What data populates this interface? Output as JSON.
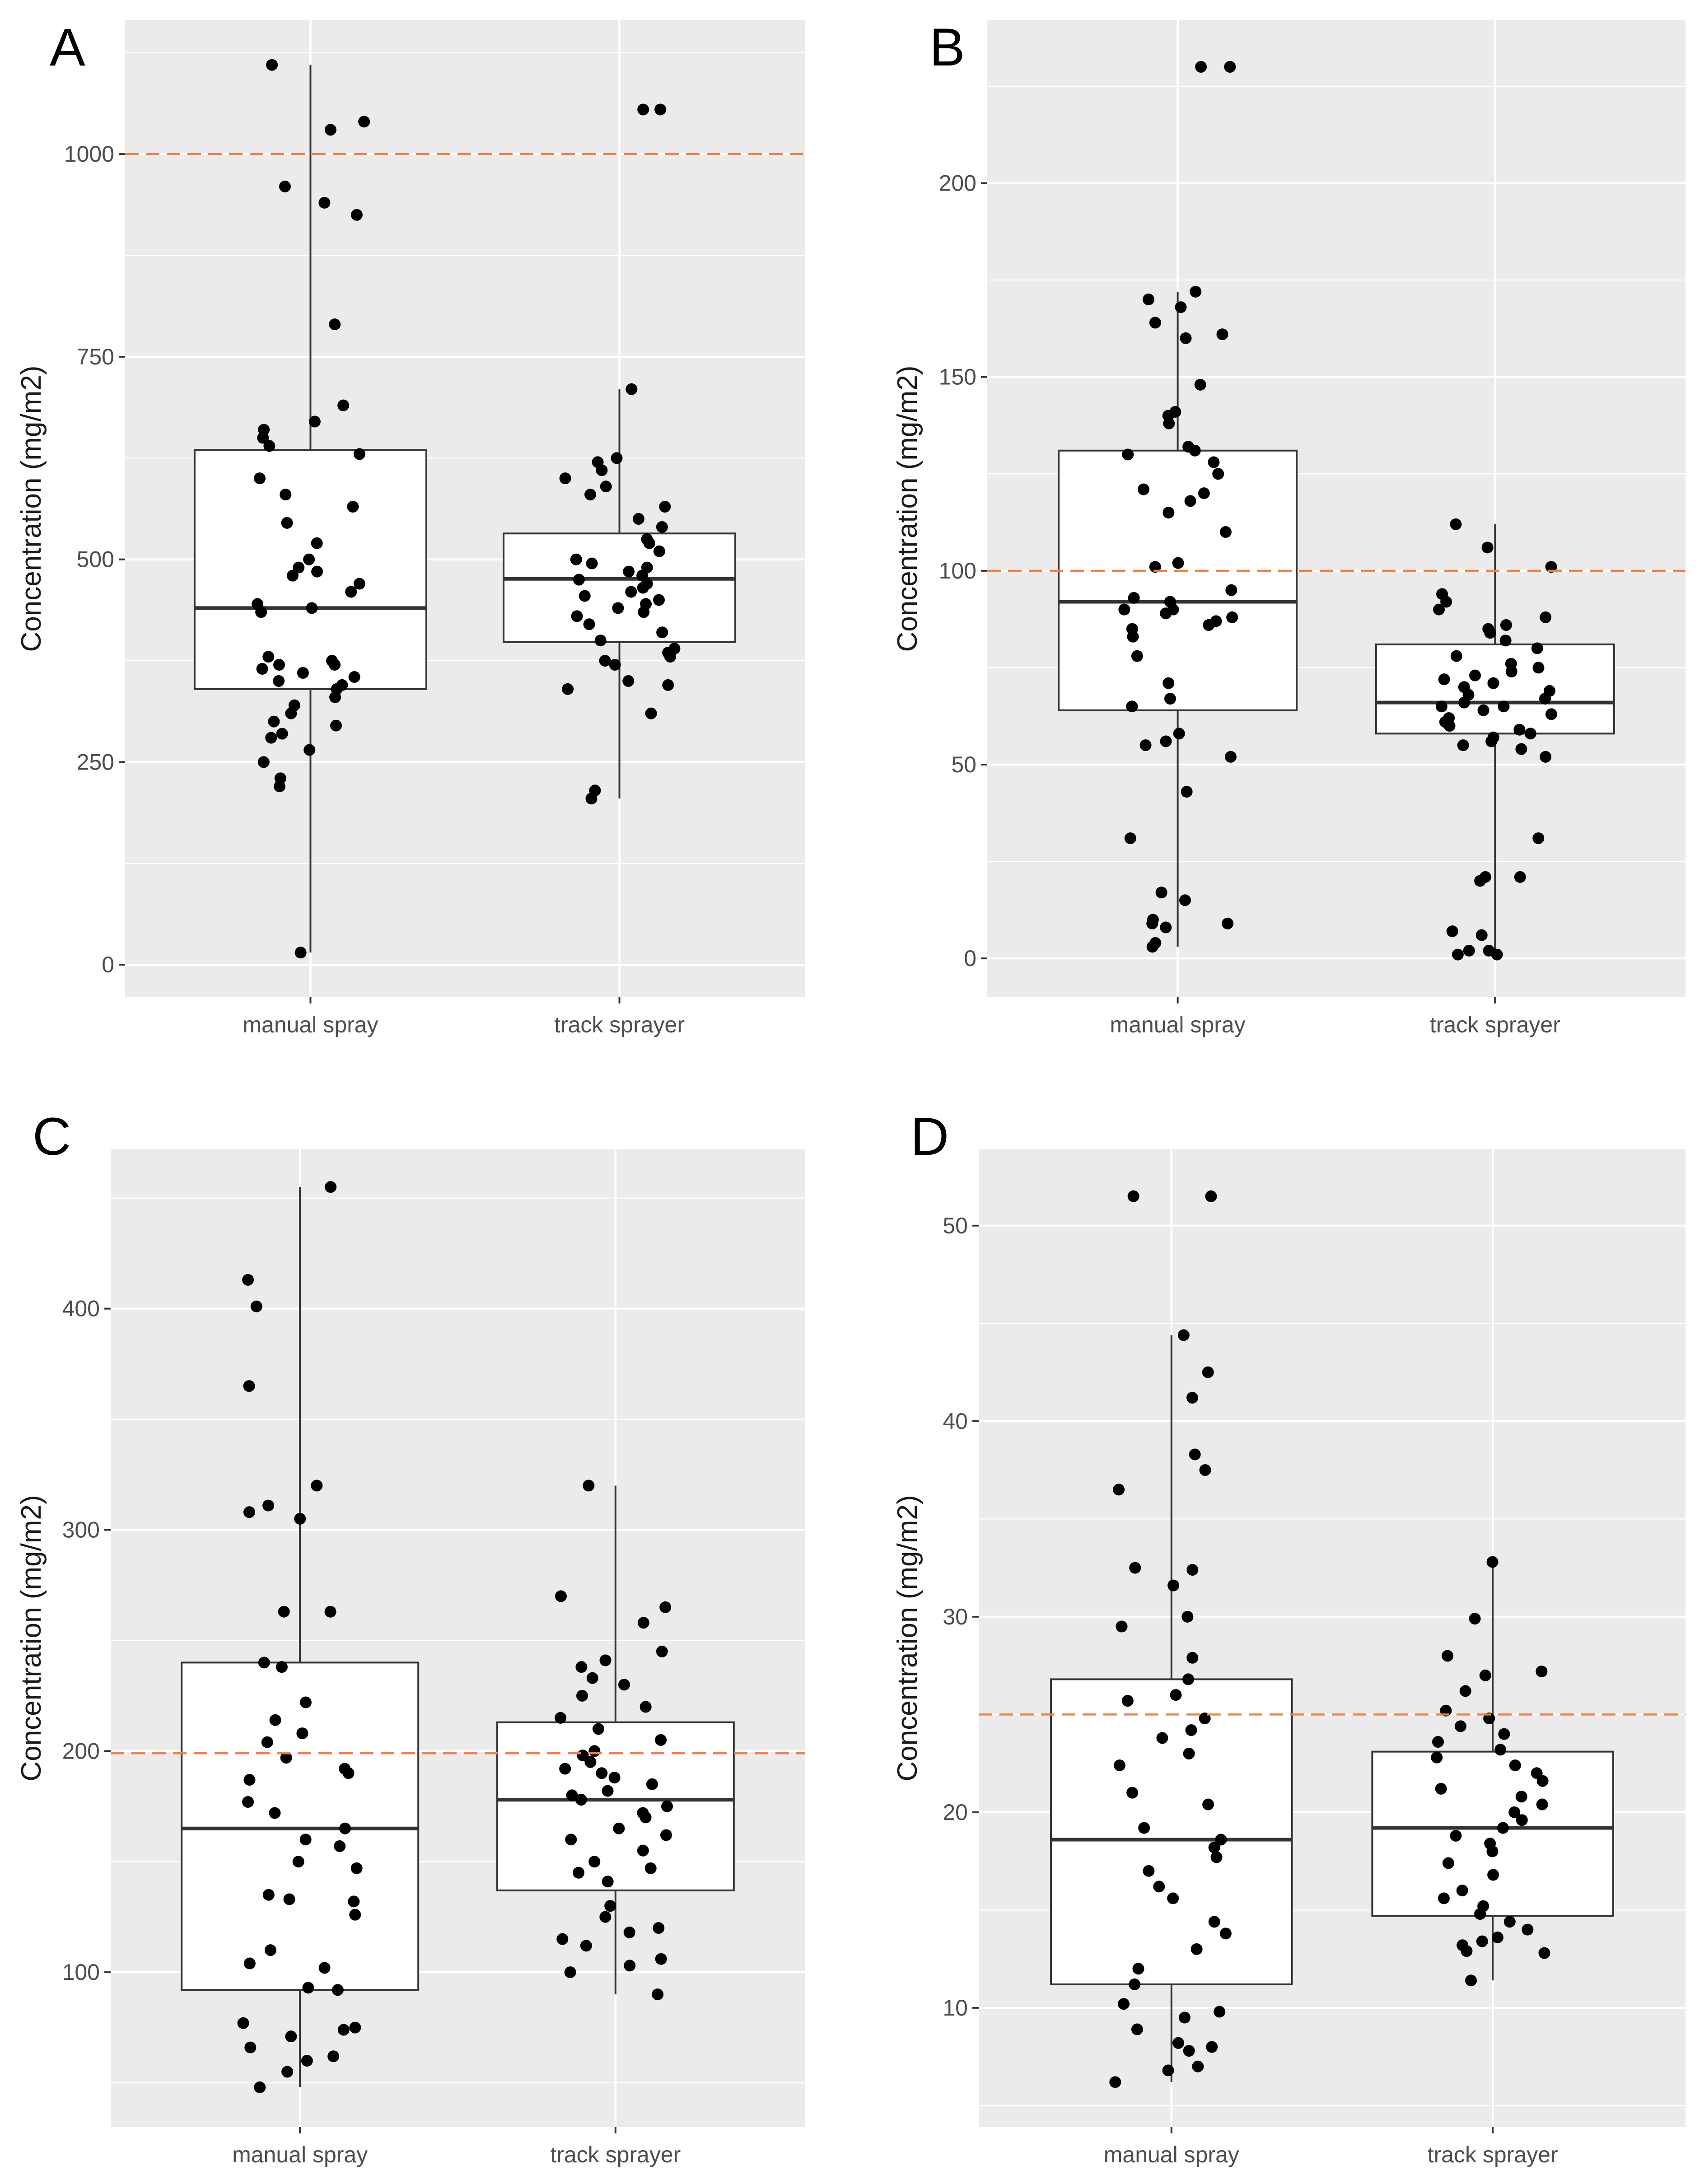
{
  "chart_data": [
    {
      "id": "A",
      "type": "box",
      "panel_label": "A",
      "ylabel": "Concentration (mg/m2)",
      "categories": [
        "manual spray",
        "track sprayer"
      ],
      "ylim": [
        -40,
        1165
      ],
      "yticks": [
        0,
        250,
        500,
        750,
        1000
      ],
      "reference_line": 1000,
      "grid": true,
      "boxes": [
        {
          "category": "manual spray",
          "q1": 340,
          "median": 440,
          "q3": 635,
          "whisker_low": 15,
          "whisker_high": 1110
        },
        {
          "category": "track sprayer",
          "q1": 398,
          "median": 476,
          "q3": 532,
          "whisker_low": 205,
          "whisker_high": 710
        }
      ],
      "points": [
        [
          15,
          220,
          230,
          250,
          265,
          280,
          285,
          295,
          300,
          310,
          320,
          330,
          340,
          345,
          350,
          355,
          360,
          365,
          370,
          370,
          375,
          380,
          435,
          440,
          445,
          460,
          470,
          480,
          485,
          490,
          500,
          520,
          545,
          565,
          580,
          600,
          630,
          640,
          650,
          660,
          670,
          690,
          790,
          925,
          940,
          960,
          1030,
          1040,
          1110
        ],
        [
          205,
          215,
          310,
          340,
          345,
          350,
          370,
          375,
          380,
          385,
          390,
          400,
          410,
          420,
          430,
          435,
          440,
          445,
          450,
          455,
          460,
          465,
          470,
          475,
          480,
          485,
          490,
          495,
          500,
          510,
          520,
          525,
          540,
          550,
          565,
          580,
          590,
          600,
          610,
          620,
          625,
          710,
          1055,
          1055
        ]
      ]
    },
    {
      "id": "B",
      "type": "box",
      "panel_label": "B",
      "ylabel": "Concentration (mg/m2)",
      "categories": [
        "manual spray",
        "track sprayer"
      ],
      "ylim": [
        -10,
        242
      ],
      "yticks": [
        0,
        50,
        100,
        150,
        200
      ],
      "reference_line": 100,
      "grid": true,
      "boxes": [
        {
          "category": "manual spray",
          "q1": 64,
          "median": 92,
          "q3": 131,
          "whisker_low": 3,
          "whisker_high": 172
        },
        {
          "category": "track sprayer",
          "q1": 58,
          "median": 66,
          "q3": 81,
          "whisker_low": 1,
          "whisker_high": 112
        }
      ],
      "points": [
        [
          3,
          4,
          8,
          9,
          9,
          10,
          15,
          17,
          31,
          43,
          52,
          55,
          56,
          58,
          65,
          67,
          71,
          78,
          83,
          85,
          86,
          87,
          88,
          89,
          90,
          90,
          92,
          93,
          95,
          101,
          102,
          110,
          115,
          118,
          120,
          121,
          125,
          128,
          130,
          131,
          132,
          138,
          140,
          141,
          148,
          160,
          161,
          164,
          168,
          170,
          172,
          230,
          230
        ],
        [
          1,
          1,
          2,
          2,
          6,
          7,
          20,
          21,
          21,
          31,
          52,
          54,
          55,
          56,
          57,
          58,
          59,
          60,
          61,
          62,
          63,
          64,
          65,
          65,
          66,
          67,
          68,
          69,
          70,
          71,
          72,
          73,
          74,
          75,
          76,
          78,
          80,
          82,
          84,
          85,
          86,
          88,
          90,
          92,
          94,
          101,
          106,
          112
        ]
      ]
    },
    {
      "id": "C",
      "type": "box",
      "panel_label": "C",
      "ylabel": "Concentration (mg/m2)",
      "categories": [
        "manual spray",
        "track sprayer"
      ],
      "ylim": [
        30,
        472
      ],
      "yticks": [
        100,
        200,
        300,
        400
      ],
      "reference_line": 199,
      "grid": true,
      "boxes": [
        {
          "category": "manual spray",
          "q1": 92,
          "median": 165,
          "q3": 240,
          "whisker_low": 48,
          "whisker_high": 455
        },
        {
          "category": "track sprayer",
          "q1": 137,
          "median": 178,
          "q3": 213,
          "whisker_low": 90,
          "whisker_high": 320
        }
      ],
      "points": [
        [
          48,
          55,
          60,
          62,
          66,
          71,
          74,
          75,
          77,
          92,
          93,
          102,
          104,
          110,
          126,
          132,
          133,
          135,
          147,
          150,
          157,
          160,
          165,
          172,
          177,
          187,
          190,
          192,
          197,
          204,
          208,
          214,
          222,
          238,
          240,
          263,
          263,
          305,
          308,
          311,
          320,
          365,
          401,
          413,
          455
        ],
        [
          90,
          100,
          103,
          106,
          112,
          115,
          118,
          120,
          125,
          130,
          141,
          145,
          147,
          150,
          155,
          160,
          162,
          165,
          170,
          172,
          175,
          178,
          180,
          182,
          185,
          188,
          190,
          192,
          195,
          198,
          200,
          205,
          210,
          215,
          220,
          225,
          230,
          233,
          238,
          241,
          245,
          258,
          265,
          270,
          320
        ]
      ]
    },
    {
      "id": "D",
      "type": "box",
      "panel_label": "D",
      "ylabel": "Concentration (mg/m2)",
      "categories": [
        "manual spray",
        "track sprayer"
      ],
      "ylim": [
        3.9,
        53.9
      ],
      "yticks": [
        10,
        20,
        30,
        40,
        50
      ],
      "reference_line": 25,
      "grid": true,
      "boxes": [
        {
          "category": "manual spray",
          "q1": 11.2,
          "median": 18.6,
          "q3": 26.8,
          "whisker_low": 6.2,
          "whisker_high": 44.4
        },
        {
          "category": "track sprayer",
          "q1": 14.7,
          "median": 19.2,
          "q3": 23.1,
          "whisker_low": 11.4,
          "whisker_high": 32.8
        }
      ],
      "points": [
        [
          6.2,
          6.8,
          7.0,
          7.8,
          8.0,
          8.2,
          8.9,
          9.5,
          9.8,
          10.2,
          11.2,
          12.0,
          13.0,
          13.8,
          14.4,
          15.6,
          16.2,
          17.0,
          17.7,
          18.2,
          18.6,
          19.2,
          20.4,
          21.0,
          22.4,
          23.0,
          23.8,
          24.2,
          24.8,
          25.7,
          26.0,
          26.8,
          27.9,
          29.5,
          30.0,
          31.6,
          32.4,
          32.5,
          36.5,
          37.5,
          38.3,
          41.2,
          42.5,
          44.4,
          51.5,
          51.5
        ],
        [
          11.4,
          12.8,
          12.9,
          13.2,
          13.4,
          13.6,
          14.0,
          14.4,
          14.8,
          15.2,
          15.6,
          16.0,
          16.8,
          17.4,
          18.0,
          18.4,
          18.8,
          19.2,
          19.6,
          20.0,
          20.4,
          20.8,
          21.2,
          21.6,
          22.0,
          22.4,
          22.8,
          23.2,
          23.6,
          24.0,
          24.4,
          24.8,
          25.2,
          26.2,
          27.0,
          27.2,
          28.0,
          29.9,
          32.8
        ]
      ]
    }
  ]
}
